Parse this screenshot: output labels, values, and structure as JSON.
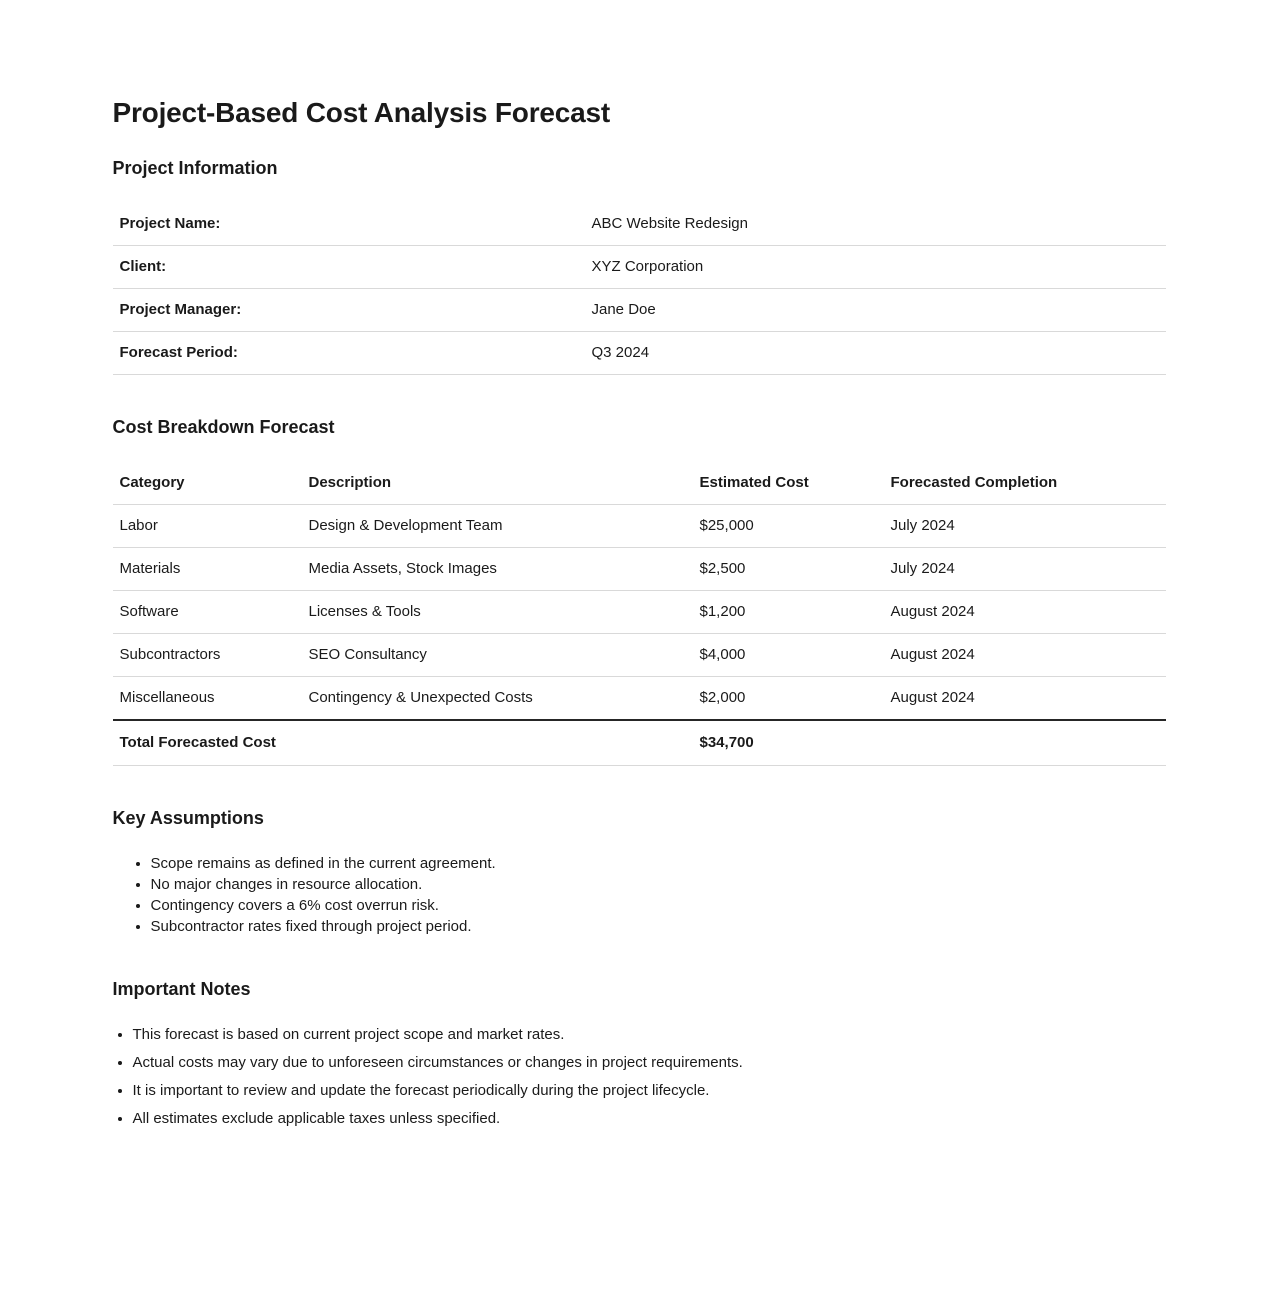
{
  "page": {
    "title": "Project-Based Cost Analysis Forecast"
  },
  "project_info": {
    "heading": "Project Information",
    "rows": [
      {
        "label": "Project Name:",
        "value": "ABC Website Redesign"
      },
      {
        "label": "Client:",
        "value": "XYZ Corporation"
      },
      {
        "label": "Project Manager:",
        "value": "Jane Doe"
      },
      {
        "label": "Forecast Period:",
        "value": "Q3 2024"
      }
    ]
  },
  "cost_breakdown": {
    "heading": "Cost Breakdown Forecast",
    "columns": [
      "Category",
      "Description",
      "Estimated Cost",
      "Forecasted Completion"
    ],
    "rows": [
      [
        "Labor",
        "Design & Development Team",
        "$25,000",
        "July 2024"
      ],
      [
        "Materials",
        "Media Assets, Stock Images",
        "$2,500",
        "July 2024"
      ],
      [
        "Software",
        "Licenses & Tools",
        "$1,200",
        "August 2024"
      ],
      [
        "Subcontractors",
        "SEO Consultancy",
        "$4,000",
        "August 2024"
      ],
      [
        "Miscellaneous",
        "Contingency & Unexpected Costs",
        "$2,000",
        "August 2024"
      ]
    ],
    "total": {
      "label": "Total Forecasted Cost",
      "value": "$34,700"
    }
  },
  "key_assumptions": {
    "heading": "Key Assumptions",
    "items": [
      "Scope remains as defined in the current agreement.",
      "No major changes in resource allocation.",
      "Contingency covers a 6% cost overrun risk.",
      "Subcontractor rates fixed through project period."
    ]
  },
  "important_notes": {
    "heading": "Important Notes",
    "items": [
      "This forecast is based on current project scope and market rates.",
      "Actual costs may vary due to unforeseen circumstances or changes in project requirements.",
      "It is important to review and update the forecast periodically during the project lifecycle.",
      "All estimates exclude applicable taxes unless specified."
    ]
  }
}
